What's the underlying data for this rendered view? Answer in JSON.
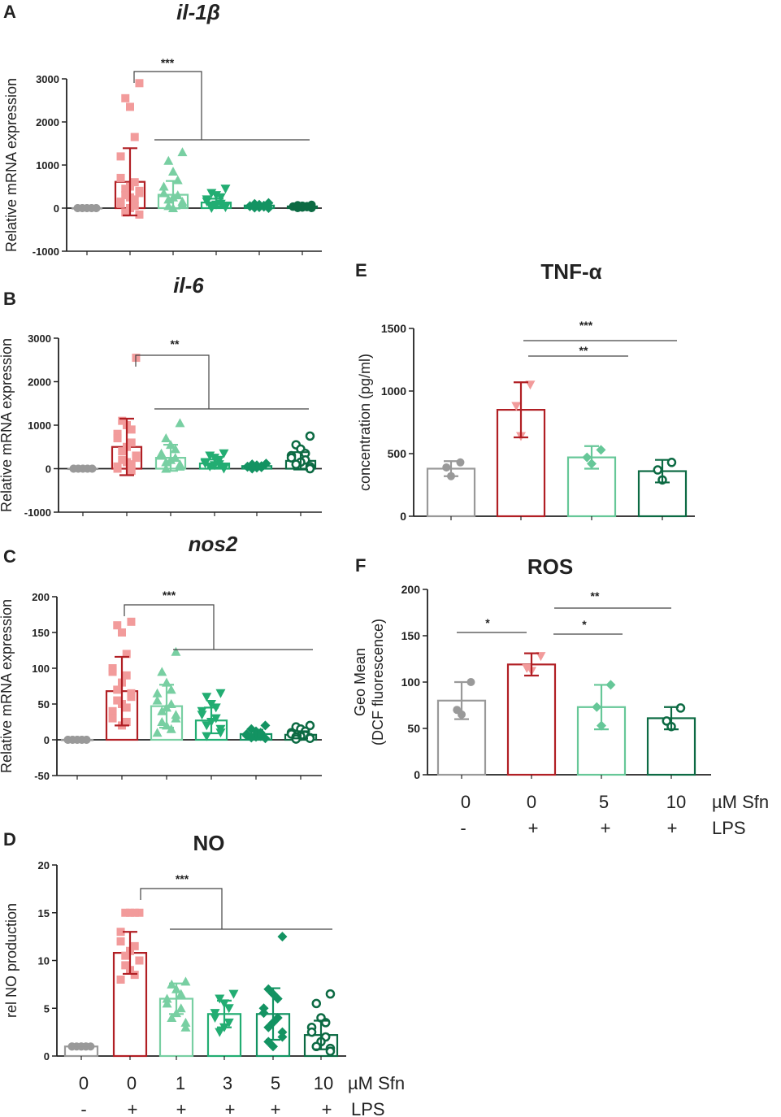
{
  "colors": {
    "ctrl": "#999999",
    "lps": "#b11f24",
    "lps_points": "#f29b9b",
    "sfn1": "#78cfa2",
    "sfn3": "#22ad72",
    "sfn5": "#139362",
    "sfn10": "#0c6a43",
    "sfn5_tnf": "#66c798"
  },
  "chart_data": [
    {
      "id": "A",
      "panel_label": "A",
      "type": "bar",
      "title": "il-1β",
      "ylabel": "Relative mRNA expression",
      "ylim": [
        -1000,
        3000
      ],
      "yticks": [
        -1000,
        0,
        1000,
        2000,
        3000
      ],
      "yticklabels": [
        "-1000",
        "0",
        "1000",
        "2000",
        "3000"
      ],
      "categories": [
        "0 Sfn / - LPS",
        "0 Sfn / + LPS",
        "1 Sfn / + LPS",
        "3 Sfn / + LPS",
        "5 Sfn / + LPS",
        "10 Sfn / + LPS"
      ],
      "series": [
        {
          "name": "mean",
          "values": [
            0,
            610,
            310,
            130,
            60,
            40
          ],
          "sd": [
            0,
            780,
            320,
            90,
            40,
            30
          ]
        }
      ],
      "points": [
        [
          0,
          0,
          0,
          0,
          0,
          0,
          0,
          0,
          0,
          0
        ],
        [
          2900,
          2550,
          2350,
          1650,
          1200,
          700,
          600,
          500,
          450,
          400,
          350,
          300,
          250,
          200,
          150,
          100,
          50,
          0,
          -100,
          -150
        ],
        [
          1300,
          1100,
          850,
          650,
          500,
          350,
          300,
          250,
          200,
          150,
          100,
          50,
          0
        ],
        [
          450,
          350,
          300,
          250,
          200,
          150,
          100,
          80,
          60,
          40,
          20,
          0
        ],
        [
          120,
          100,
          80,
          60,
          50,
          40,
          30,
          20,
          10,
          0
        ],
        [
          80,
          70,
          60,
          50,
          40,
          30,
          20,
          10,
          0,
          0
        ]
      ],
      "significance": [
        {
          "label": "***"
        }
      ]
    },
    {
      "id": "B",
      "panel_label": "B",
      "type": "bar",
      "title": "il-6",
      "ylabel": "Relative mRNA expression",
      "ylim": [
        -1000,
        3000
      ],
      "yticks": [
        -1000,
        0,
        1000,
        2000,
        3000
      ],
      "yticklabels": [
        "-1000",
        "0",
        "1000",
        "2000",
        "3000"
      ],
      "categories": [
        "0 Sfn / - LPS",
        "0 Sfn / + LPS",
        "1 Sfn / + LPS",
        "3 Sfn / + LPS",
        "5 Sfn / + LPS",
        "10 Sfn / + LPS"
      ],
      "series": [
        {
          "name": "mean",
          "values": [
            0,
            500,
            250,
            120,
            60,
            180
          ],
          "sd": [
            0,
            650,
            300,
            90,
            50,
            200
          ]
        }
      ],
      "points": [
        [
          0,
          0,
          0,
          0,
          0,
          0,
          0,
          0,
          0,
          0
        ],
        [
          2550,
          1100,
          1000,
          900,
          800,
          700,
          600,
          500,
          400,
          300,
          250,
          200,
          150,
          100,
          50,
          0,
          -50
        ],
        [
          1050,
          700,
          550,
          450,
          350,
          300,
          250,
          200,
          150,
          100,
          50,
          0
        ],
        [
          350,
          300,
          250,
          200,
          150,
          120,
          100,
          80,
          50,
          20,
          0
        ],
        [
          120,
          100,
          80,
          60,
          50,
          40,
          30,
          20,
          0
        ],
        [
          750,
          550,
          450,
          350,
          300,
          250,
          200,
          150,
          100,
          50,
          0
        ]
      ],
      "significance": [
        {
          "label": "**"
        }
      ]
    },
    {
      "id": "C",
      "panel_label": "C",
      "type": "bar",
      "title": "nos2",
      "ylabel": "Relative mRNA expression",
      "ylim": [
        -50,
        200
      ],
      "yticks": [
        -50,
        0,
        50,
        100,
        150,
        200
      ],
      "yticklabels": [
        "-50",
        "0",
        "50",
        "100",
        "150",
        "200"
      ],
      "categories": [
        "0 Sfn / - LPS",
        "0 Sfn / + LPS",
        "1 Sfn / + LPS",
        "3 Sfn / + LPS",
        "5 Sfn / + LPS",
        "10 Sfn / + LPS"
      ],
      "series": [
        {
          "name": "mean",
          "values": [
            0,
            68,
            47,
            27,
            8,
            7
          ],
          "sd": [
            0,
            48,
            30,
            18,
            6,
            5
          ]
        }
      ],
      "points": [
        [
          0,
          0,
          0,
          0,
          0,
          0,
          0,
          0,
          0,
          0
        ],
        [
          165,
          160,
          150,
          120,
          100,
          95,
          90,
          80,
          70,
          65,
          60,
          55,
          50,
          45,
          40,
          30,
          25,
          20
        ],
        [
          123,
          95,
          80,
          70,
          65,
          55,
          50,
          45,
          40,
          35,
          30,
          25,
          20,
          15,
          10
        ],
        [
          65,
          60,
          50,
          45,
          40,
          35,
          30,
          25,
          20,
          15,
          10,
          5
        ],
        [
          20,
          15,
          12,
          10,
          8,
          6,
          5,
          4,
          3,
          2
        ],
        [
          20,
          18,
          15,
          12,
          10,
          8,
          6,
          5,
          4,
          3,
          2,
          1
        ]
      ],
      "significance": [
        {
          "label": "***"
        }
      ]
    },
    {
      "id": "D",
      "panel_label": "D",
      "type": "bar",
      "title": "NO",
      "ylabel": "rel NO production",
      "ylim": [
        0,
        20
      ],
      "yticks": [
        0,
        5,
        10,
        15,
        20
      ],
      "yticklabels": [
        "0",
        "5",
        "10",
        "15",
        "20"
      ],
      "categories": [
        "0 Sfn / - LPS",
        "0 Sfn / + LPS",
        "1 Sfn / + LPS",
        "3 Sfn / + LPS",
        "5 Sfn / + LPS",
        "10 Sfn / + LPS"
      ],
      "series": [
        {
          "name": "mean",
          "values": [
            1,
            10.8,
            6.0,
            4.4,
            4.4,
            2.2
          ],
          "sd": [
            0.1,
            2.2,
            1.6,
            1.4,
            2.7,
            1.5
          ]
        }
      ],
      "points": [
        [
          1,
          1,
          1,
          1,
          1,
          1,
          1,
          1
        ],
        [
          15,
          15,
          15,
          15,
          13,
          12,
          11.5,
          11,
          10.5,
          10,
          10,
          9.5,
          9,
          8.5,
          8
        ],
        [
          7.8,
          7.5,
          7,
          6.5,
          6,
          5.5,
          5,
          4.5,
          4,
          3.5,
          3
        ],
        [
          6.5,
          6,
          5.5,
          5,
          4.5,
          4,
          3.5,
          3,
          2.5
        ],
        [
          12.5,
          7,
          6.5,
          6,
          5,
          4.5,
          4,
          3.5,
          3,
          2.5,
          2,
          1.5,
          1
        ],
        [
          6.5,
          5.5,
          4,
          3.5,
          3,
          2.5,
          2,
          1.5,
          1,
          0.8,
          0.5
        ]
      ],
      "significance": [
        {
          "label": "***"
        }
      ]
    },
    {
      "id": "E",
      "panel_label": "E",
      "type": "bar",
      "title": "TNF-α",
      "ylabel": "concentration (pg/ml)",
      "ylim": [
        0,
        1500
      ],
      "yticks": [
        0,
        500,
        1000,
        1500
      ],
      "yticklabels": [
        "0",
        "500",
        "1000",
        "1500"
      ],
      "categories": [
        "0 Sfn / - LPS",
        "0 Sfn / + LPS",
        "5 Sfn / + LPS",
        "10 Sfn / + LPS"
      ],
      "series": [
        {
          "name": "mean",
          "values": [
            380,
            850,
            470,
            360
          ],
          "sd": [
            60,
            220,
            90,
            90
          ]
        }
      ],
      "points": [
        [
          430,
          390,
          320
        ],
        [
          1050,
          880,
          640
        ],
        [
          530,
          470,
          420
        ],
        [
          430,
          370,
          290
        ]
      ],
      "significance": [
        {
          "label": "***"
        },
        {
          "label": "**"
        }
      ]
    },
    {
      "id": "F",
      "panel_label": "F",
      "type": "bar",
      "title": "ROS",
      "ylabel": "Geo Mean",
      "ylabel2": "(DCF fluorescence)",
      "ylim": [
        0,
        200
      ],
      "yticks": [
        0,
        50,
        100,
        150,
        200
      ],
      "yticklabels": [
        "0",
        "50",
        "100",
        "150",
        "200"
      ],
      "categories": [
        "0 Sfn / - LPS",
        "0 Sfn / + LPS",
        "5 Sfn / + LPS",
        "10 Sfn / + LPS"
      ],
      "series": [
        {
          "name": "mean",
          "values": [
            80,
            119,
            73,
            61
          ],
          "sd": [
            20,
            12,
            24,
            12
          ]
        }
      ],
      "points": [
        [
          100,
          70,
          65
        ],
        [
          128,
          115,
          112
        ],
        [
          97,
          73,
          53
        ],
        [
          72,
          58,
          52
        ]
      ],
      "significance": [
        {
          "label": "*"
        },
        {
          "label": "**"
        },
        {
          "label": "*"
        }
      ]
    }
  ],
  "xaxis_D": {
    "sfn": [
      "0",
      "0",
      "1",
      "3",
      "5",
      "10"
    ],
    "lps": [
      "-",
      "+",
      "+",
      "+",
      "+",
      "+"
    ],
    "sfn_unit": "µM Sfn",
    "lps_label": "LPS"
  },
  "xaxis_F": {
    "sfn": [
      "0",
      "0",
      "5",
      "10"
    ],
    "lps": [
      "-",
      "+",
      "+",
      "+"
    ],
    "sfn_unit": "µM Sfn",
    "lps_label": "LPS"
  }
}
